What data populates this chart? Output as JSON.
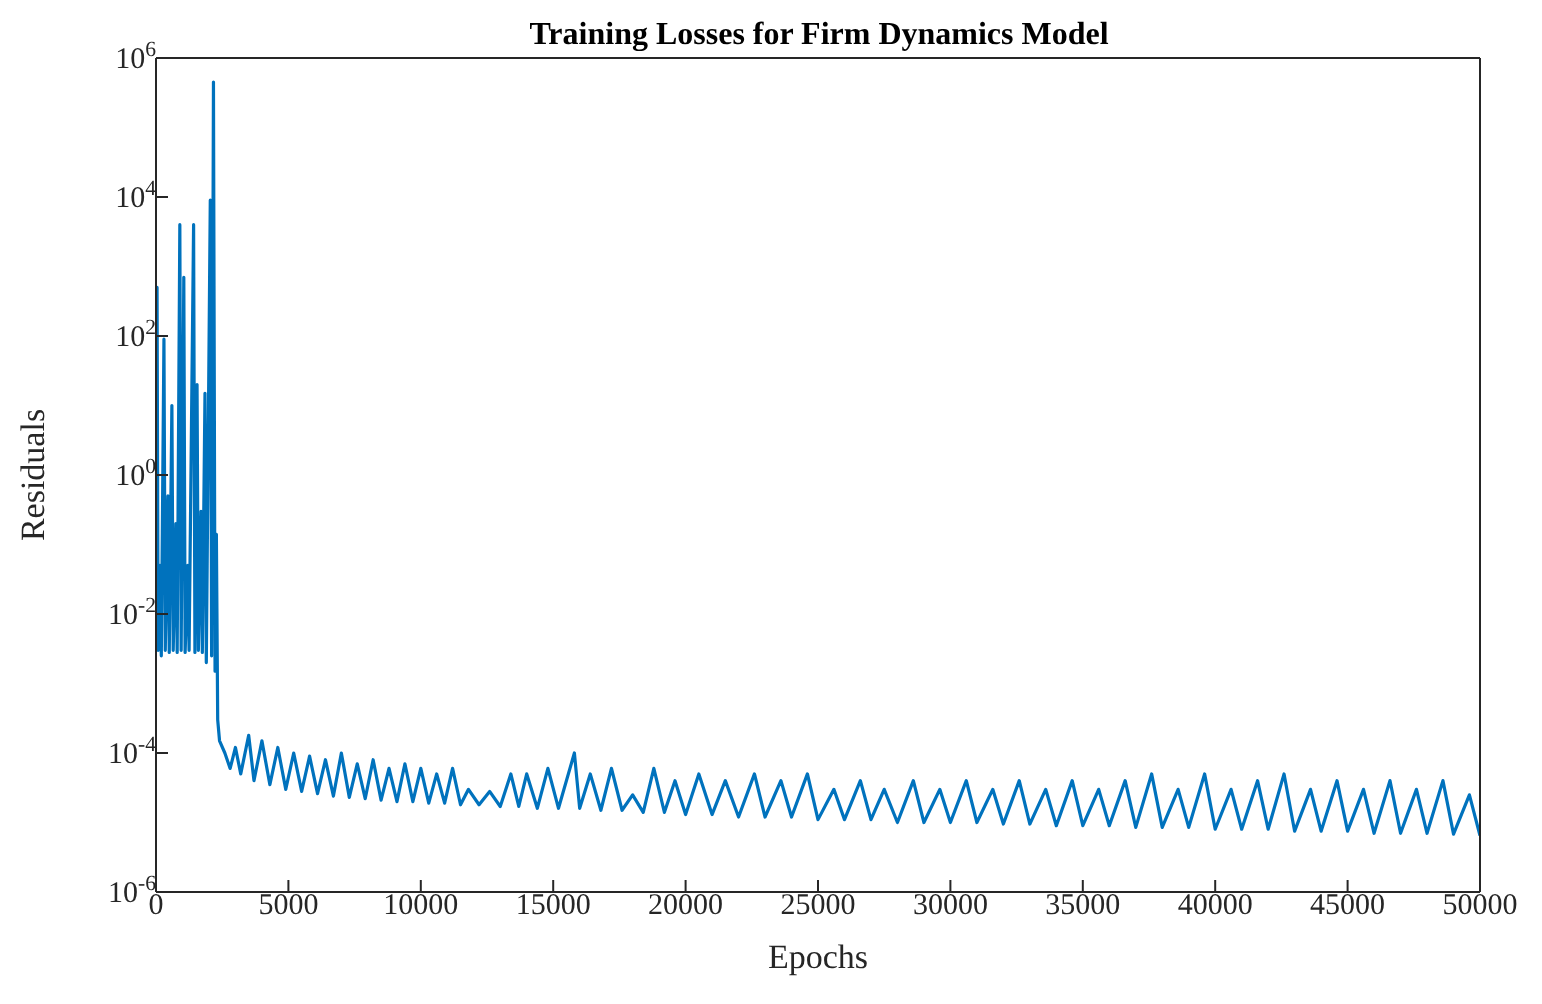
{
  "chart_data": {
    "type": "line",
    "title": "Training Losses for Firm Dynamics Model",
    "xlabel": "Epochs",
    "ylabel": "Residuals",
    "log": "y",
    "marker": "none",
    "line_style": "solid",
    "xlim": [
      0,
      50000
    ],
    "xticks": [
      0,
      5000,
      10000,
      15000,
      20000,
      25000,
      30000,
      35000,
      40000,
      45000,
      50000
    ],
    "ylim": [
      1e-06,
      1000000
    ],
    "yticks": [
      {
        "value": 1e-06,
        "label": "10$^{-6}$"
      },
      {
        "value": 0.0001,
        "label": "10$^{-4}$"
      },
      {
        "value": 0.01,
        "label": "10$^{-2}$"
      },
      {
        "value": 1,
        "label": "10$^{0}$"
      },
      {
        "value": 100,
        "label": "10$^{2}$"
      },
      {
        "value": 10000,
        "label": "10$^{4}$"
      },
      {
        "value": 1000000,
        "label": "10$^{6}$"
      }
    ],
    "series": [
      {
        "color": "#0072bd",
        "x": [
          0,
          40,
          80,
          150,
          200,
          300,
          350,
          450,
          500,
          600,
          650,
          750,
          800,
          900,
          950,
          1050,
          1100,
          1200,
          1250,
          1420,
          1470,
          1550,
          1600,
          1700,
          1750,
          1850,
          1900,
          2050,
          2100,
          2170,
          2230,
          2280,
          2330,
          2400,
          2600,
          2800,
          3000,
          3200,
          3500,
          3700,
          4000,
          4300,
          4600,
          4900,
          5200,
          5500,
          5800,
          6100,
          6400,
          6700,
          7000,
          7300,
          7600,
          7900,
          8200,
          8500,
          8800,
          9100,
          9400,
          9700,
          10000,
          10300,
          10600,
          10900,
          11200,
          11500,
          11800,
          12200,
          12600,
          13000,
          13400,
          13700,
          14000,
          14400,
          14800,
          15200,
          15800,
          16000,
          16400,
          16800,
          17200,
          17600,
          18000,
          18400,
          18800,
          19200,
          19600,
          20000,
          20500,
          21000,
          21500,
          22000,
          22600,
          23000,
          23600,
          24000,
          24600,
          25000,
          25600,
          26000,
          26600,
          27000,
          27500,
          28000,
          28600,
          29000,
          29600,
          30000,
          30600,
          31000,
          31600,
          32000,
          32600,
          33000,
          33600,
          34000,
          34600,
          35000,
          35600,
          36000,
          36600,
          37000,
          37600,
          38000,
          38600,
          39000,
          39600,
          40000,
          40600,
          41000,
          41600,
          42000,
          42600,
          43000,
          43600,
          44000,
          44600,
          45000,
          45600,
          46000,
          46600,
          47000,
          47600,
          48000,
          48600,
          49000,
          49600,
          50000
        ],
        "values": [
          0.003,
          500,
          0.003,
          0.05,
          0.0025,
          90,
          0.003,
          0.5,
          0.0028,
          10,
          0.003,
          0.2,
          0.0028,
          4000,
          0.003,
          700,
          0.0028,
          0.05,
          0.003,
          4000,
          0.0028,
          20,
          0.003,
          0.3,
          0.0028,
          15,
          0.002,
          9000,
          0.0025,
          450000,
          0.0015,
          0.14,
          0.0003,
          0.00015,
          0.0001,
          6e-05,
          0.00012,
          5e-05,
          0.00018,
          4e-05,
          0.00015,
          3.5e-05,
          0.00012,
          3e-05,
          0.0001,
          2.8e-05,
          9e-05,
          2.6e-05,
          8e-05,
          2.4e-05,
          0.0001,
          2.3e-05,
          7e-05,
          2.2e-05,
          8e-05,
          2.1e-05,
          6e-05,
          2e-05,
          7e-05,
          2e-05,
          6e-05,
          1.9e-05,
          5e-05,
          1.9e-05,
          6e-05,
          1.8e-05,
          3e-05,
          1.8e-05,
          2.8e-05,
          1.7e-05,
          5e-05,
          1.7e-05,
          5e-05,
          1.6e-05,
          6e-05,
          1.6e-05,
          0.0001,
          1.6e-05,
          5e-05,
          1.5e-05,
          6e-05,
          1.5e-05,
          2.5e-05,
          1.4e-05,
          6e-05,
          1.4e-05,
          4e-05,
          1.3e-05,
          5e-05,
          1.3e-05,
          4e-05,
          1.2e-05,
          5e-05,
          1.2e-05,
          4e-05,
          1.2e-05,
          5e-05,
          1.1e-05,
          3e-05,
          1.1e-05,
          4e-05,
          1.1e-05,
          3e-05,
          1e-05,
          4e-05,
          1e-05,
          3e-05,
          1e-05,
          4e-05,
          1e-05,
          3e-05,
          9.5e-06,
          4e-05,
          9.5e-06,
          3e-05,
          9e-06,
          4e-05,
          9e-06,
          3e-05,
          9e-06,
          4e-05,
          8.5e-06,
          5e-05,
          8.5e-06,
          3e-05,
          8.5e-06,
          5e-05,
          8e-06,
          3e-05,
          8e-06,
          4e-05,
          8e-06,
          5e-05,
          7.5e-06,
          3e-05,
          7.5e-06,
          4e-05,
          7.5e-06,
          3e-05,
          7e-06,
          4e-05,
          7e-06,
          3e-05,
          7e-06,
          4e-05,
          6.8e-06,
          2.5e-05,
          6.5e-06
        ]
      }
    ]
  }
}
